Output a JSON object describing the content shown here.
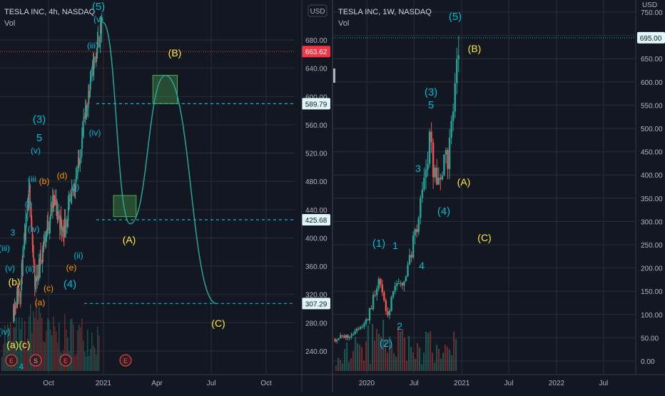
{
  "left_panel": {
    "title": "TESLA INC, 4h, NASDAQ",
    "vol_label": "Vol",
    "currency_button": "USD",
    "price_axis": [
      "680.00",
      "640.00",
      "600.00",
      "560.00",
      "520.00",
      "480.00",
      "440.00",
      "400.00",
      "360.00",
      "320.00",
      "280.00",
      "240.00"
    ],
    "time_axis": [
      "Oct",
      "2021",
      "Apr",
      "Jul",
      "Oct"
    ],
    "price_tags": [
      {
        "value": "663.62",
        "color": "#f23645"
      },
      {
        "value": "589.79",
        "color": "#00bcd4"
      },
      {
        "value": "425.68",
        "color": "#00bcd4"
      },
      {
        "value": "307.29",
        "color": "#00bcd4"
      }
    ],
    "event_markers": [
      "E",
      "S",
      "E",
      "E"
    ],
    "wave_labels_cyan": [
      "(5)",
      "(v)",
      "(iii)",
      "(iv)",
      "(3)",
      "5",
      "(v)",
      "(iii",
      "(i)",
      "(iv)",
      "(ii)",
      "(i)",
      "(ii)",
      "(4)",
      "3",
      "(iii)",
      "(v)",
      "(iv)",
      "4"
    ],
    "wave_labels_orange": [
      "(b)",
      "(d)",
      "(c)",
      "(a)",
      "(e)"
    ],
    "wave_labels_yellow": [
      "(B)",
      "(A)",
      "(C)",
      "(b)",
      "(a)(c)"
    ]
  },
  "right_panel": {
    "title": "TESLA INC, 1W, NASDAQ",
    "vol_label": "Vol",
    "currency_label": "USD",
    "price_axis": [
      "750.00",
      "700.00",
      "650.00",
      "600.00",
      "550.00",
      "500.00",
      "450.00",
      "400.00",
      "350.00",
      "300.00",
      "250.00",
      "200.00",
      "150.00",
      "100.00",
      "50.00",
      "0.00"
    ],
    "time_axis": [
      "2020",
      "Jul",
      "2021",
      "Jul",
      "2022",
      "Jul"
    ],
    "price_tags": [
      {
        "value": "695.00",
        "color": "#00bcd4"
      }
    ],
    "wave_labels_cyan": [
      "(5)",
      "(3)",
      "5",
      "3",
      "(4)",
      "(1)",
      "1",
      "4",
      "2",
      "(2)"
    ],
    "wave_labels_yellow": [
      "(B)",
      "(A)",
      "(C)"
    ]
  },
  "colors": {
    "background": "#131722",
    "up": "#26a69a",
    "down": "#ef5350",
    "cyan": "#00bcd4",
    "yellow": "#ffeb3b",
    "orange": "#ff9800",
    "projection": "#26a69a",
    "grid": "#2a2e39"
  },
  "chart_data": [
    {
      "type": "candlestick",
      "title": "TESLA INC, 4h, NASDAQ",
      "ylim": [
        220,
        720
      ],
      "x_ticks": [
        "Oct",
        "2021",
        "Apr",
        "Jul",
        "Oct"
      ],
      "horizontal_levels": [
        663.62,
        589.79,
        425.68,
        307.29
      ],
      "close_path": [
        [
          "2020-08-03",
          300
        ],
        [
          "2020-08-15",
          330
        ],
        [
          "2020-08-31",
          470
        ],
        [
          "2020-09-08",
          330
        ],
        [
          "2020-09-23",
          390
        ],
        [
          "2020-10-10",
          455
        ],
        [
          "2020-10-25",
          410
        ],
        [
          "2020-11-05",
          440
        ],
        [
          "2020-11-20",
          500
        ],
        [
          "2020-12-10",
          620
        ],
        [
          "2020-12-31",
          705
        ]
      ],
      "projection_path": [
        [
          "2020-12-31",
          705
        ],
        [
          "2021-02-15",
          420
        ],
        [
          "2021-04-15",
          630
        ],
        [
          "2021-07-10",
          307
        ]
      ],
      "projection_boxes": [
        {
          "x": [
            "2021-01-18",
            "2021-02-25"
          ],
          "y": [
            430,
            460
          ]
        },
        {
          "x": [
            "2021-03-25",
            "2021-05-05"
          ],
          "y": [
            590,
            630
          ]
        }
      ]
    },
    {
      "type": "candlestick",
      "title": "TESLA INC, 1W, NASDAQ",
      "ylim": [
        0,
        750
      ],
      "x_ticks": [
        "2020",
        "Jul",
        "2021",
        "Jul",
        "2022",
        "Jul"
      ],
      "horizontal_levels": [
        695.0
      ],
      "close_path": [
        [
          "2019-09-01",
          48
        ],
        [
          "2019-10-20",
          52
        ],
        [
          "2019-11-20",
          66
        ],
        [
          "2020-01-01",
          86
        ],
        [
          "2020-02-19",
          180
        ],
        [
          "2020-03-18",
          90
        ],
        [
          "2020-04-15",
          150
        ],
        [
          "2020-06-01",
          180
        ],
        [
          "2020-07-13",
          300
        ],
        [
          "2020-08-31",
          470
        ],
        [
          "2020-09-23",
          380
        ],
        [
          "2020-10-20",
          420
        ],
        [
          "2020-11-10",
          440
        ],
        [
          "2020-12-01",
          560
        ],
        [
          "2020-12-25",
          695
        ]
      ]
    }
  ]
}
